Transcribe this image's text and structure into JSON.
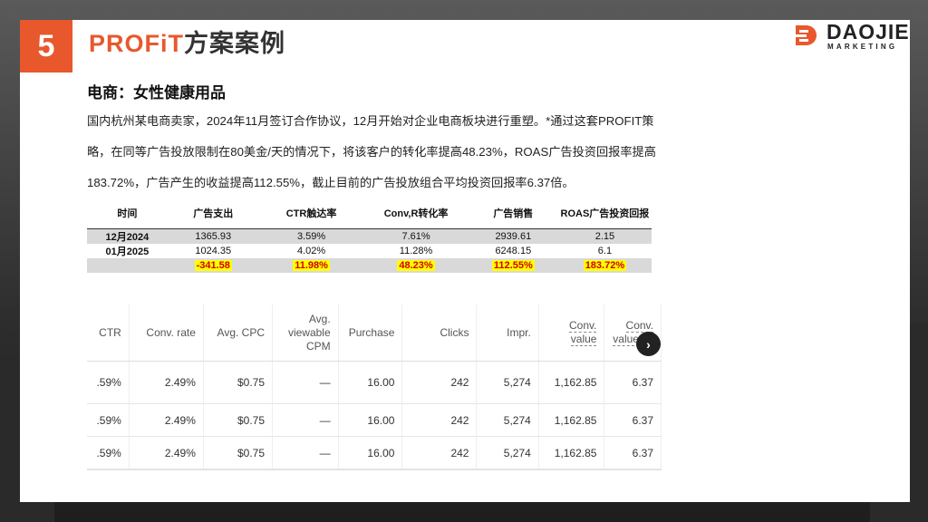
{
  "slide": {
    "number": "5",
    "title_brand": "PROFiT",
    "title_rest": "方案案例",
    "logo_word": "DAOJIE",
    "logo_sub": "MARKETING",
    "subtitle": "电商：女性健康用品",
    "paragraph": [
      "国内杭州某电商卖家，2024年11月签订合作协议，12月开始对企业电商板块进行重塑。*通过这套PROFIT策",
      "略，在同等广告投放限制在80美金/天的情况下，将该客户的转化率提高48.23%，ROAS广告投资回报率提高",
      "183.72%，广告产生的收益提高112.55%，截止目前的广告投放组合平均投资回报率6.37倍。"
    ]
  },
  "summary_table": {
    "headers": [
      "时间",
      "广告支出",
      "CTR触达率",
      "Conv,R转化率",
      "广告销售",
      "ROAS广告投资回报"
    ],
    "rows": [
      [
        "12月2024",
        "1365.93",
        "3.59%",
        "7.61%",
        "2939.61",
        "2.15"
      ],
      [
        "01月2025",
        "1024.35",
        "4.02%",
        "11.28%",
        "6248.15",
        "6.1"
      ],
      [
        "",
        "-341.58",
        "11.98%",
        "48.23%",
        "112.55%",
        "183.72%"
      ]
    ]
  },
  "ads_table": {
    "headers": [
      "CTR",
      "Conv. rate",
      "Avg. CPC",
      "Avg. viewable CPM",
      "Purchase",
      "Clicks",
      "Impr.",
      "Conv. value",
      "Conv. value / c"
    ],
    "rows": [
      [
        ".59%",
        "2.49%",
        "$0.75",
        "—",
        "16.00",
        "242",
        "5,274",
        "1,162.85",
        "6.37"
      ],
      [
        ".59%",
        "2.49%",
        "$0.75",
        "—",
        "16.00",
        "242",
        "5,274",
        "1,162.85",
        "6.37"
      ],
      [
        ".59%",
        "2.49%",
        "$0.75",
        "—",
        "16.00",
        "242",
        "5,274",
        "1,162.85",
        "6.37"
      ]
    ],
    "next_icon": "chevron-right-icon"
  },
  "colors": {
    "accent": "#e8582c",
    "highlight_bg": "#ffff00",
    "highlight_text": "#d00000"
  }
}
